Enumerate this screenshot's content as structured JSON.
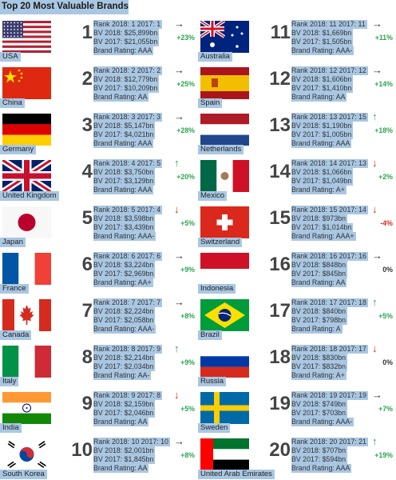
{
  "title": "Top 20 Most Valuable Brands",
  "colors": {
    "up": "#2ea44f",
    "down": "#d12a1f",
    "flat": "#333333",
    "neutral": "#333333",
    "highlight": "#a9c7e3"
  },
  "entries": [
    {
      "rank": "1",
      "country": "USA",
      "flag": "usa",
      "line1": "Rank 2018: 1 2017: 1",
      "bv2018": "BV 2018: $25,899bn",
      "bv2017": "BV 2017: $21,055bn",
      "rating": "Brand Rating: AAA",
      "arrow": "→",
      "arrow_icon": "arrow-right-icon",
      "change": "+23%",
      "trend": "flat",
      "pct_color": "up"
    },
    {
      "rank": "2",
      "country": "China",
      "flag": "china",
      "line1": "Rank 2018: 2 2017: 2",
      "bv2018": "BV 2018: $12,779bn",
      "bv2017": "BV 2017: $10,209bn",
      "rating": "Brand Rating: AA",
      "arrow": "→",
      "arrow_icon": "arrow-right-icon",
      "change": "+25%",
      "trend": "flat",
      "pct_color": "up"
    },
    {
      "rank": "3",
      "country": "Germany",
      "flag": "germany",
      "line1": "Rank 2018: 3 2017: 3",
      "bv2018": "BV 2018: $5,147bn",
      "bv2017": "BV 2017: $4,021bn",
      "rating": "Brand Rating: AAA",
      "arrow": "→",
      "arrow_icon": "arrow-right-icon",
      "change": "+28%",
      "trend": "flat",
      "pct_color": "up"
    },
    {
      "rank": "4",
      "country": "United Kingdom",
      "flag": "uk",
      "line1": "Rank 2018: 4 2017: 5",
      "bv2018": "BV 2018: $3,750bn",
      "bv2017": "BV 2017: $3,129bn",
      "rating": "Brand Rating: AAA",
      "arrow": "↑",
      "arrow_icon": "arrow-up-icon",
      "change": "+20%",
      "trend": "up",
      "pct_color": "up"
    },
    {
      "rank": "5",
      "country": "Japan",
      "flag": "japan",
      "line1": "Rank 2018: 5 2017: 4",
      "bv2018": "BV 2018: $3,598bn",
      "bv2017": "BV 2017: $3,439bn",
      "rating": "Brand Rating: AAA-",
      "arrow": "↓",
      "arrow_icon": "arrow-down-icon",
      "change": "+5%",
      "trend": "down",
      "pct_color": "up"
    },
    {
      "rank": "6",
      "country": "France",
      "flag": "france",
      "line1": "Rank 2018: 6 2017: 6",
      "bv2018": "BV 2018: $3,224bn",
      "bv2017": "BV 2017: $2,969bn",
      "rating": "Brand Rating: AA+",
      "arrow": "→",
      "arrow_icon": "arrow-right-icon",
      "change": "+9%",
      "trend": "flat",
      "pct_color": "up"
    },
    {
      "rank": "7",
      "country": "Canada",
      "flag": "canada",
      "line1": "Rank 2018: 7 2017: 7",
      "bv2018": "BV 2018: $2,224bn",
      "bv2017": "BV 2017: $2,058bn",
      "rating": "Brand Rating: AAA-",
      "arrow": "→",
      "arrow_icon": "arrow-right-icon",
      "change": "+8%",
      "trend": "flat",
      "pct_color": "up"
    },
    {
      "rank": "8",
      "country": "Italy",
      "flag": "italy",
      "line1": "Rank 2018: 8 2017: 9",
      "bv2018": "BV 2018: $2,214bn",
      "bv2017": "BV 2017: $2,034bn",
      "rating": "Brand Rating: AA-",
      "arrow": "↑",
      "arrow_icon": "arrow-up-icon",
      "change": "+9%",
      "trend": "up",
      "pct_color": "up"
    },
    {
      "rank": "9",
      "country": "India",
      "flag": "india",
      "line1": "Rank 2018: 9 2017: 8",
      "bv2018": "BV 2018: $2,159bn",
      "bv2017": "BV 2017: $2,046bn",
      "rating": "Brand Rating: AA",
      "arrow": "↓",
      "arrow_icon": "arrow-down-icon",
      "change": "+5%",
      "trend": "down",
      "pct_color": "up"
    },
    {
      "rank": "10",
      "country": "South Korea",
      "flag": "south_korea",
      "line1": "Rank 2018: 10 2017: 10",
      "bv2018": "BV 2018: $2,001bn",
      "bv2017": "BV 2017: $1,845bn",
      "rating": "Brand Rating: AA",
      "arrow": "→",
      "arrow_icon": "arrow-right-icon",
      "change": "+8%",
      "trend": "flat",
      "pct_color": "up"
    },
    {
      "rank": "11",
      "country": "Australia",
      "flag": "australia",
      "line1": "Rank 2018: 11 2017: 11",
      "bv2018": "BV 2018: $1,669bn",
      "bv2017": "BV 2017: $1,505bn",
      "rating": "Brand Rating: AAA-",
      "arrow": "→",
      "arrow_icon": "arrow-right-icon",
      "change": "+11%",
      "trend": "flat",
      "pct_color": "up"
    },
    {
      "rank": "12",
      "country": "Spain",
      "flag": "spain",
      "line1": "Rank 2018: 12 2017: 12",
      "bv2018": "BV 2018: $1,606bn",
      "bv2017": "BV 2017: $1,410bn",
      "rating": "Brand Rating: AA",
      "arrow": "→",
      "arrow_icon": "arrow-right-icon",
      "change": "+14%",
      "trend": "flat",
      "pct_color": "up"
    },
    {
      "rank": "13",
      "country": "Netherlands",
      "flag": "netherlands",
      "line1": "Rank 2018: 13 2017: 15",
      "bv2018": "BV 2018: $1,190bn",
      "bv2017": "BV 2017: $1,005bn",
      "rating": "Brand Rating: AAA",
      "arrow": "↑",
      "arrow_icon": "arrow-up-icon",
      "change": "+18%",
      "trend": "up",
      "pct_color": "up"
    },
    {
      "rank": "14",
      "country": "Mexico",
      "flag": "mexico",
      "line1": "Rank 2018: 14 2017: 13",
      "bv2018": "BV 2018: $1,066bn",
      "bv2017": "BV 2017: $1,049bn",
      "rating": "Brand Rating: A+",
      "arrow": "↓",
      "arrow_icon": "arrow-down-icon",
      "change": "+2%",
      "trend": "down",
      "pct_color": "up"
    },
    {
      "rank": "15",
      "country": "Switzerland",
      "flag": "switzerland",
      "line1": "Rank 2018: 15 2017: 14",
      "bv2018": "BV 2018: $973bn",
      "bv2017": "BV 2017: $1,014bn",
      "rating": "Brand Rating: AAA+",
      "arrow": "↓",
      "arrow_icon": "arrow-down-icon",
      "change": "-4%",
      "trend": "down",
      "pct_color": "down"
    },
    {
      "rank": "16",
      "country": "Indonesia",
      "flag": "indonesia",
      "line1": "Rank 2018: 16 2017: 16",
      "bv2018": "BV 2018: $848bn",
      "bv2017": "BV 2017: $845bn",
      "rating": "Brand Rating: AA",
      "arrow": "→",
      "arrow_icon": "arrow-right-icon",
      "change": "0%",
      "trend": "flat",
      "pct_color": "neutral"
    },
    {
      "rank": "17",
      "country": "Brazil",
      "flag": "brazil",
      "line1": "Rank 2018: 17 2017: 18",
      "bv2018": "BV 2018: $840bn",
      "bv2017": "BV 2017: $798bn",
      "rating": "Brand Rating: A",
      "arrow": "↑",
      "arrow_icon": "arrow-up-icon",
      "change": "+5%",
      "trend": "up",
      "pct_color": "up"
    },
    {
      "rank": "18",
      "country": "Russia",
      "flag": "russia",
      "line1": "Rank 2018: 18 2017: 17",
      "bv2018": "BV 2018: $830bn",
      "bv2017": "BV 2017: $832bn",
      "rating": "Brand Rating: A+",
      "arrow": "↓",
      "arrow_icon": "arrow-down-icon",
      "change": "0%",
      "trend": "down",
      "pct_color": "neutral"
    },
    {
      "rank": "19",
      "country": "Sweden",
      "flag": "sweden",
      "line1": "Rank 2018: 19 2017: 19",
      "bv2018": "BV 2018: $749bn",
      "bv2017": "BV 2017: $703bn",
      "rating": "Brand Rating: AAA-",
      "arrow": "→",
      "arrow_icon": "arrow-right-icon",
      "change": "+7%",
      "trend": "flat",
      "pct_color": "up"
    },
    {
      "rank": "20",
      "country": "United Arab Emirates",
      "flag": "uae",
      "line1": "Rank 2018: 20 2017: 21",
      "bv2018": "BV 2018: $707bn",
      "bv2017": "BV 2017: $594bn",
      "rating": "Brand Rating: AAA",
      "arrow": "↑",
      "arrow_icon": "arrow-up-icon",
      "change": "+19%",
      "trend": "up",
      "pct_color": "up"
    }
  ]
}
